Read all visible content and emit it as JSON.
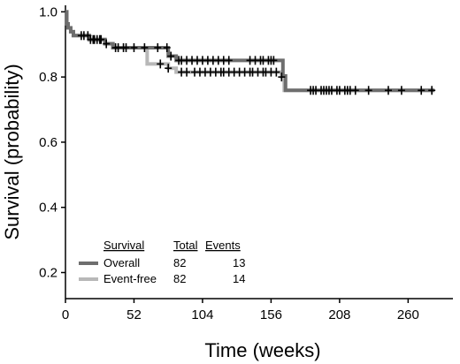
{
  "chart_data": {
    "type": "line",
    "xlabel": "Time (weeks)",
    "ylabel": "Survival (probability)",
    "xlim": [
      0,
      294
    ],
    "ylim": [
      0.12,
      1.02
    ],
    "x_ticks": [
      "0",
      "52",
      "104",
      "156",
      "208",
      "260"
    ],
    "y_ticks": [
      "1.0",
      "0.8",
      "0.6",
      "0.4",
      "0.2"
    ],
    "grid": false,
    "legend_position": "bottom-left",
    "legend_headers": {
      "survival": "Survival",
      "total": "Total",
      "events": "Events"
    },
    "series": [
      {
        "name": "Overall",
        "total": "82",
        "events": "13",
        "color": "#6e6e6e",
        "steps": [
          [
            0,
            1.0
          ],
          [
            1,
            0.963
          ],
          [
            2,
            0.951
          ],
          [
            4,
            0.939
          ],
          [
            6,
            0.927
          ],
          [
            18,
            0.915
          ],
          [
            30,
            0.902
          ],
          [
            36,
            0.89
          ],
          [
            78,
            0.864
          ],
          [
            84,
            0.851
          ],
          [
            165,
            0.803
          ],
          [
            167,
            0.759
          ],
          [
            280,
            0.759
          ]
        ],
        "censor_x": [
          12,
          14,
          17,
          19,
          21,
          22,
          24,
          26,
          27,
          31,
          38,
          44,
          52,
          60,
          70,
          77,
          80,
          86,
          88,
          92,
          96,
          100,
          104,
          108,
          112,
          116,
          120,
          124,
          140,
          144,
          148,
          150,
          154,
          156,
          158,
          186,
          188,
          190,
          194,
          196,
          198,
          200,
          202,
          206,
          208,
          212,
          214,
          216,
          220,
          230,
          245,
          255,
          270,
          278
        ]
      },
      {
        "name": "Event-free",
        "total": "82",
        "events": "14",
        "color": "#b8b8b8",
        "steps": [
          [
            0,
            1.0
          ],
          [
            1,
            0.963
          ],
          [
            2,
            0.951
          ],
          [
            4,
            0.939
          ],
          [
            6,
            0.927
          ],
          [
            18,
            0.915
          ],
          [
            30,
            0.902
          ],
          [
            36,
            0.89
          ],
          [
            62,
            0.84
          ],
          [
            78,
            0.827
          ],
          [
            84,
            0.815
          ],
          [
            164,
            0.8
          ],
          [
            166,
            0.759
          ],
          [
            280,
            0.759
          ]
        ],
        "censor_x": [
          40,
          46,
          72,
          78,
          88,
          92,
          98,
          102,
          106,
          110,
          114,
          118,
          120,
          124,
          128,
          132,
          136,
          140,
          142,
          146,
          150,
          152,
          156,
          160,
          164
        ]
      }
    ]
  }
}
